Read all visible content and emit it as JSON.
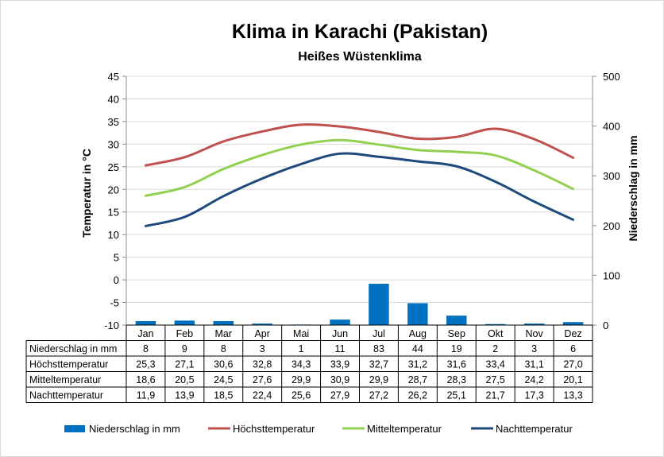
{
  "chart_data": {
    "type": "bar+line",
    "title": "Klima in Karachi (Pakistan)",
    "subtitle": "Heißes Wüstenklima",
    "ylabel": "Temperatur in °C",
    "y2label": "Niederschlag in mm",
    "ylim": [
      -10,
      45
    ],
    "y2lim": [
      0,
      500
    ],
    "yticks": [
      "45",
      "40",
      "35",
      "30",
      "25",
      "20",
      "15",
      "10",
      "5",
      "0",
      "-5",
      "-10"
    ],
    "y2ticks": [
      "500",
      "400",
      "300",
      "200",
      "100",
      "0"
    ],
    "categories": [
      "Jan",
      "Feb",
      "Mar",
      "Apr",
      "Mai",
      "Jun",
      "Jul",
      "Aug",
      "Sep",
      "Okt",
      "Nov",
      "Dez"
    ],
    "bars": {
      "name": "Niederschlag in mm",
      "color": "#0070c0",
      "values": [
        8,
        9,
        8,
        3,
        1,
        11,
        83,
        44,
        19,
        2,
        3,
        6
      ],
      "labels": [
        "8",
        "9",
        "8",
        "3",
        "1",
        "11",
        "83",
        "44",
        "19",
        "2",
        "3",
        "6"
      ]
    },
    "series": [
      {
        "name": "Höchsttemperatur",
        "color": "#c0504d",
        "values": [
          25.3,
          27.1,
          30.6,
          32.8,
          34.3,
          33.9,
          32.7,
          31.2,
          31.6,
          33.4,
          31.1,
          27.0
        ],
        "labels": [
          "25,3",
          "27,1",
          "30,6",
          "32,8",
          "34,3",
          "33,9",
          "32,7",
          "31,2",
          "31,6",
          "33,4",
          "31,1",
          "27,0"
        ]
      },
      {
        "name": "Mitteltemperatur",
        "color": "#92d050",
        "values": [
          18.6,
          20.5,
          24.5,
          27.6,
          29.9,
          30.9,
          29.9,
          28.7,
          28.3,
          27.5,
          24.2,
          20.1
        ],
        "labels": [
          "18,6",
          "20,5",
          "24,5",
          "27,6",
          "29,9",
          "30,9",
          "29,9",
          "28,7",
          "28,3",
          "27,5",
          "24,2",
          "20,1"
        ]
      },
      {
        "name": "Nachttemperatur",
        "color": "#1f497d",
        "values": [
          11.9,
          13.9,
          18.5,
          22.4,
          25.6,
          27.9,
          27.2,
          26.2,
          25.1,
          21.7,
          17.3,
          13.3
        ],
        "labels": [
          "11,9",
          "13,9",
          "18,5",
          "22,4",
          "25,6",
          "27,9",
          "27,2",
          "26,2",
          "25,1",
          "21,7",
          "17,3",
          "13,3"
        ]
      }
    ],
    "legend": "bottom",
    "grid": true
  }
}
